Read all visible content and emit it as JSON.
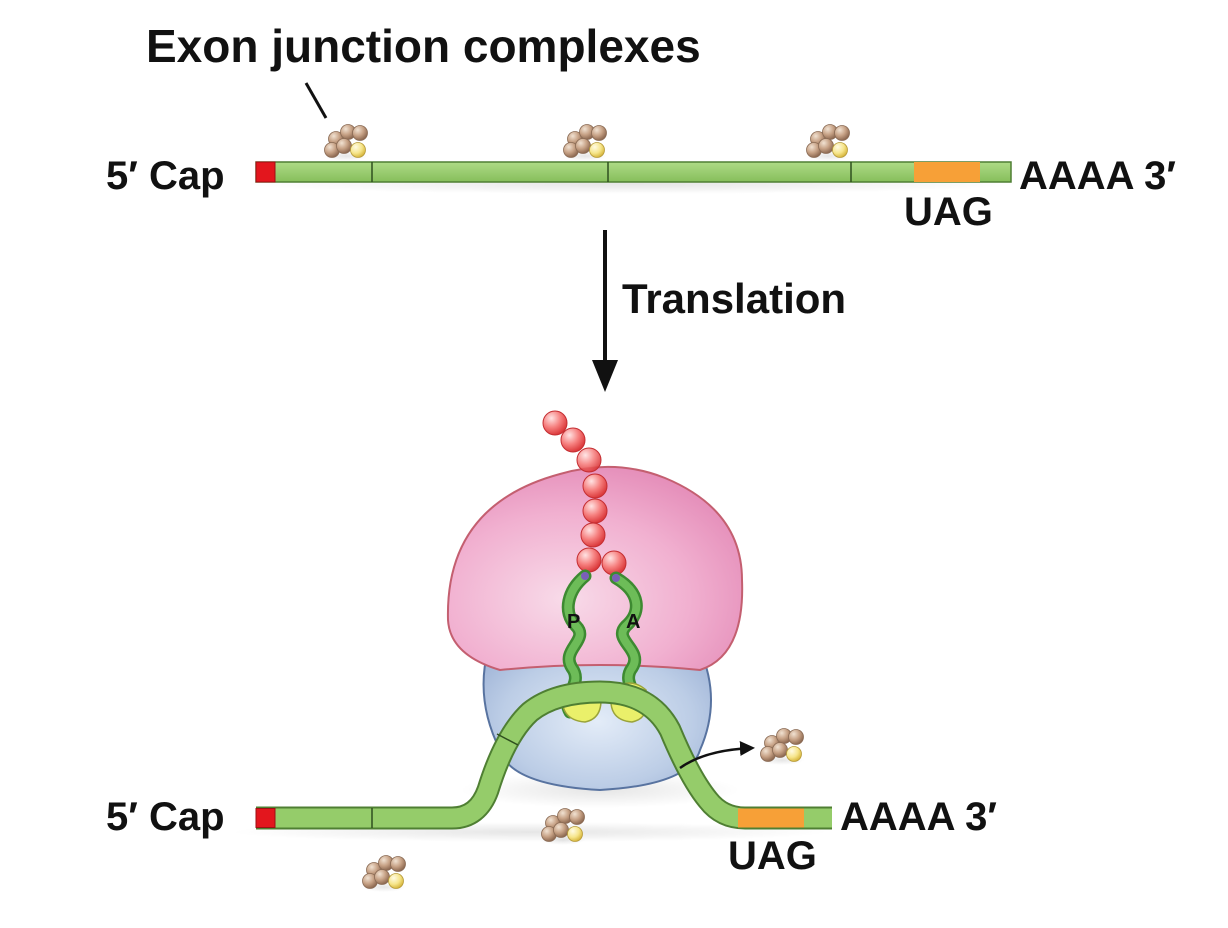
{
  "labels": {
    "ejc_title": "Exon junction complexes",
    "five_cap_top": "5′ Cap",
    "three_end_top": "AAAA 3′",
    "stop_top": "UAG",
    "arrow_label": "Translation",
    "five_cap_bottom": "5′ Cap",
    "three_end_bottom": "AAAA 3′",
    "stop_bottom": "UAG",
    "trna_p": "P",
    "trna_a": "A"
  },
  "colors": {
    "mrna_green": "#95cc6a",
    "cap_red": "#e3161d",
    "stop_codon_orange": "#f7a037",
    "large_subunit_pink": "#f0a7cc",
    "small_subunit_blue": "#b3c6e3",
    "peptide_red": "#f2605f",
    "trna_green": "#58a845",
    "anticodon_yellow": "#eaf06a",
    "ejc_brown": "#b99477",
    "ejc_yellow": "#f4e07a"
  }
}
